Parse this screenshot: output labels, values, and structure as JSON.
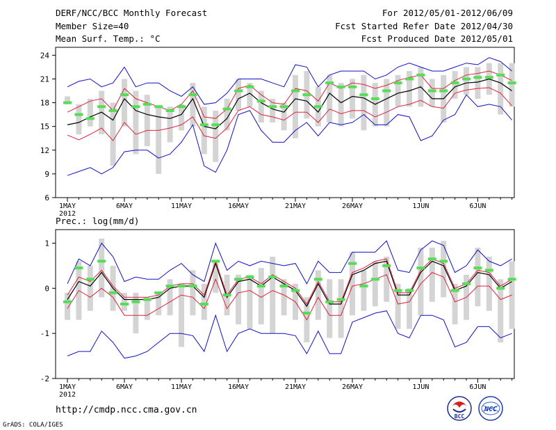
{
  "header": {
    "title": "DERF/NCC/BCC Monthly Forecast",
    "member_size": "Member Size=40",
    "variable_top": "Mean Surf. Temp.: °C",
    "period": "For 2012/05/01-2012/06/09",
    "started": "Fcst Started Refer Date 2012/04/30",
    "produced": "Fcst Produced Date 2012/05/01"
  },
  "footer": {
    "url": "http://cmdp.ncc.cma.gov.cn",
    "grads": "GrADS: COLA/IGES",
    "logo_bcc": "BCC",
    "logo_ncc": "NCC"
  },
  "colors": {
    "mean": "#000000",
    "spread": "#e0203a",
    "extreme": "#1010c8",
    "box": "#d4d4d4",
    "marker": "#55dd55"
  },
  "chart_data": [
    {
      "type": "line",
      "title": "Mean Surf. Temp.: °C",
      "x_tick_labels": [
        "1MAY",
        "6MAY",
        "11MAY",
        "16MAY",
        "21MAY",
        "26MAY",
        "1JUN",
        "6JUN"
      ],
      "x_tick_days": [
        1,
        6,
        11,
        16,
        21,
        26,
        32,
        37
      ],
      "year_label": "2012",
      "days": [
        1,
        2,
        3,
        4,
        5,
        6,
        7,
        8,
        9,
        10,
        11,
        12,
        13,
        14,
        15,
        16,
        17,
        18,
        19,
        20,
        21,
        22,
        23,
        24,
        25,
        26,
        27,
        28,
        29,
        30,
        31,
        32,
        33,
        34,
        35,
        36,
        37,
        38,
        39,
        40
      ],
      "ylim": [
        6,
        25
      ],
      "yticks": [
        6,
        9,
        12,
        15,
        18,
        21,
        24
      ],
      "series": [
        {
          "name": "ensemble-mean",
          "values": [
            15.2,
            15.5,
            16.2,
            16.8,
            15.8,
            18.5,
            17.0,
            16.5,
            16.2,
            16.0,
            16.5,
            18.5,
            15.0,
            14.7,
            16.0,
            18.5,
            19.2,
            18.0,
            17.2,
            16.8,
            18.5,
            18.2,
            16.8,
            19.2,
            18.0,
            18.8,
            18.6,
            17.8,
            18.5,
            19.2,
            19.5,
            20.0,
            18.5,
            18.5,
            20.0,
            20.5,
            20.6,
            21.0,
            20.5,
            19.5
          ]
        },
        {
          "name": "spread-upper",
          "values": [
            16.8,
            17.5,
            18.2,
            18.5,
            17.0,
            19.8,
            18.5,
            18.0,
            17.5,
            17.0,
            17.8,
            19.5,
            16.2,
            16.0,
            17.2,
            19.8,
            20.2,
            19.0,
            18.0,
            17.8,
            19.8,
            19.5,
            18.2,
            20.5,
            19.8,
            20.5,
            20.3,
            19.8,
            20.2,
            20.8,
            21.2,
            21.5,
            19.8,
            19.8,
            20.8,
            21.5,
            21.7,
            22.0,
            21.5,
            20.8
          ]
        },
        {
          "name": "spread-lower",
          "values": [
            13.9,
            13.3,
            14.0,
            14.8,
            13.2,
            15.5,
            14.0,
            14.5,
            14.5,
            14.8,
            15.2,
            16.2,
            13.8,
            13.5,
            14.8,
            17.0,
            17.5,
            16.5,
            16.2,
            15.8,
            16.8,
            16.8,
            15.5,
            17.2,
            16.6,
            17.0,
            17.0,
            16.2,
            16.8,
            17.5,
            17.8,
            18.3,
            17.5,
            17.3,
            19.2,
            19.6,
            19.8,
            19.9,
            19.2,
            17.6
          ]
        },
        {
          "name": "max",
          "values": [
            20.0,
            20.7,
            21.0,
            20.0,
            20.5,
            22.5,
            20.0,
            20.5,
            20.5,
            19.5,
            18.8,
            20.0,
            17.8,
            18.0,
            19.2,
            21.0,
            21.0,
            21.0,
            20.5,
            20.0,
            22.8,
            22.5,
            20.0,
            21.5,
            22.0,
            22.0,
            22.0,
            21.0,
            21.5,
            22.5,
            23.0,
            22.5,
            22.0,
            22.0,
            22.5,
            23.0,
            22.8,
            23.7,
            23.2,
            22.0
          ]
        },
        {
          "name": "min",
          "values": [
            8.8,
            9.3,
            9.8,
            9.0,
            9.8,
            11.8,
            12.0,
            12.0,
            11.0,
            11.5,
            13.0,
            15.2,
            10.0,
            9.2,
            12.0,
            16.5,
            17.0,
            14.5,
            13.0,
            13.0,
            14.5,
            15.5,
            13.8,
            15.5,
            15.2,
            15.5,
            16.5,
            15.2,
            15.2,
            16.5,
            16.2,
            13.2,
            13.8,
            15.8,
            16.5,
            19.0,
            17.5,
            17.8,
            17.5,
            15.8
          ]
        },
        {
          "name": "observed",
          "values": [
            18.0,
            16.5,
            16.0,
            17.5,
            17.0,
            19.0,
            17.5,
            17.8,
            17.5,
            17.0,
            17.5,
            19.0,
            15.2,
            15.2,
            17.2,
            19.5,
            20.0,
            18.2,
            17.5,
            17.5,
            19.5,
            19.0,
            17.5,
            20.5,
            20.0,
            20.0,
            19.0,
            18.5,
            19.5,
            20.5,
            21.0,
            21.5,
            19.5,
            19.5,
            20.5,
            21.0,
            21.2,
            21.2,
            21.5,
            20.5
          ]
        }
      ],
      "box_ranges": [
        [
          17.8,
          18.8
        ],
        [
          14.0,
          17.8
        ],
        [
          15.0,
          18.5
        ],
        [
          14.0,
          19.5
        ],
        [
          10.0,
          18.0
        ],
        [
          15.0,
          21.0
        ],
        [
          11.5,
          19.5
        ],
        [
          12.5,
          19.0
        ],
        [
          9.0,
          17.5
        ],
        [
          13.0,
          17.5
        ],
        [
          14.5,
          17.8
        ],
        [
          15.0,
          20.5
        ],
        [
          11.5,
          17.5
        ],
        [
          10.5,
          17.0
        ],
        [
          14.5,
          18.5
        ],
        [
          17.0,
          21.0
        ],
        [
          17.5,
          20.5
        ],
        [
          15.5,
          19.5
        ],
        [
          15.5,
          18.5
        ],
        [
          14.5,
          18.0
        ],
        [
          13.5,
          21.5
        ],
        [
          16.0,
          22.0
        ],
        [
          15.0,
          20.0
        ],
        [
          15.5,
          21.5
        ],
        [
          15.0,
          20.5
        ],
        [
          16.0,
          21.0
        ],
        [
          14.5,
          21.5
        ],
        [
          15.0,
          20.5
        ],
        [
          15.0,
          21.0
        ],
        [
          17.5,
          21.5
        ],
        [
          17.5,
          22.0
        ],
        [
          17.5,
          22.5
        ],
        [
          17.5,
          21.0
        ],
        [
          15.5,
          21.5
        ],
        [
          18.5,
          22.0
        ],
        [
          19.0,
          22.5
        ],
        [
          18.5,
          22.5
        ],
        [
          19.0,
          23.0
        ],
        [
          16.5,
          23.0
        ],
        [
          17.5,
          23.0
        ]
      ]
    },
    {
      "type": "line",
      "title": "Prec.: log(mm/d)",
      "x_tick_labels": [
        "1MAY",
        "6MAY",
        "11MAY",
        "16MAY",
        "21MAY",
        "26MAY",
        "1JUN",
        "6JUN"
      ],
      "x_tick_days": [
        1,
        6,
        11,
        16,
        21,
        26,
        32,
        37
      ],
      "year_label": "2012",
      "days": [
        1,
        2,
        3,
        4,
        5,
        6,
        7,
        8,
        9,
        10,
        11,
        12,
        13,
        14,
        15,
        16,
        17,
        18,
        19,
        20,
        21,
        22,
        23,
        24,
        25,
        26,
        27,
        28,
        29,
        30,
        31,
        32,
        33,
        34,
        35,
        36,
        37,
        38,
        39,
        40
      ],
      "ylim": [
        -2,
        1.3
      ],
      "yticks": [
        -2,
        -1,
        0,
        1
      ],
      "series": [
        {
          "name": "ensemble-mean",
          "values": [
            -0.25,
            0.15,
            0.05,
            0.35,
            0.0,
            -0.25,
            -0.25,
            -0.25,
            -0.2,
            0.0,
            0.05,
            0.05,
            -0.2,
            0.55,
            -0.2,
            0.15,
            0.2,
            0.05,
            0.25,
            0.1,
            -0.05,
            -0.4,
            0.1,
            -0.35,
            -0.35,
            0.3,
            0.4,
            0.55,
            0.6,
            -0.15,
            -0.15,
            0.35,
            0.6,
            0.5,
            -0.05,
            0.05,
            0.35,
            0.3,
            0.0,
            0.15
          ]
        },
        {
          "name": "spread-upper",
          "values": [
            -0.15,
            0.25,
            0.15,
            0.4,
            0.05,
            -0.2,
            -0.2,
            -0.2,
            -0.15,
            0.05,
            0.1,
            0.1,
            -0.15,
            0.6,
            -0.15,
            0.2,
            0.25,
            0.1,
            0.3,
            0.15,
            0.0,
            -0.35,
            0.15,
            -0.3,
            -0.3,
            0.35,
            0.45,
            0.6,
            0.65,
            -0.1,
            -0.1,
            0.4,
            0.65,
            0.55,
            0.0,
            0.1,
            0.4,
            0.35,
            0.05,
            0.2
          ]
        },
        {
          "name": "spread-lower",
          "values": [
            -0.45,
            -0.05,
            -0.2,
            0.0,
            -0.2,
            -0.6,
            -0.6,
            -0.6,
            -0.45,
            -0.3,
            -0.15,
            -0.2,
            -0.45,
            0.2,
            -0.45,
            -0.1,
            -0.05,
            -0.2,
            -0.05,
            -0.15,
            -0.3,
            -0.7,
            -0.2,
            -0.6,
            -0.6,
            0.05,
            0.1,
            0.2,
            0.3,
            -0.35,
            -0.3,
            0.1,
            0.35,
            0.25,
            -0.3,
            -0.2,
            0.05,
            0.05,
            -0.25,
            -0.15
          ]
        },
        {
          "name": "max",
          "values": [
            0.1,
            0.65,
            0.5,
            1.0,
            0.7,
            0.15,
            0.25,
            0.2,
            0.2,
            0.4,
            0.55,
            0.3,
            0.15,
            1.0,
            0.4,
            0.6,
            0.5,
            0.6,
            0.55,
            0.5,
            0.55,
            0.1,
            0.6,
            0.35,
            0.35,
            0.8,
            0.8,
            0.8,
            1.05,
            0.4,
            0.35,
            0.85,
            1.05,
            0.95,
            0.35,
            0.5,
            0.85,
            0.6,
            0.5,
            0.65
          ]
        },
        {
          "name": "min",
          "values": [
            -1.5,
            -1.4,
            -1.4,
            -0.95,
            -1.2,
            -1.55,
            -1.5,
            -1.4,
            -1.2,
            -1.0,
            -1.0,
            -1.05,
            -1.4,
            -0.6,
            -1.4,
            -1.0,
            -0.9,
            -1.0,
            -1.0,
            -1.0,
            -1.05,
            -1.45,
            -0.95,
            -1.45,
            -1.45,
            -0.75,
            -0.65,
            -0.55,
            -0.5,
            -1.0,
            -1.1,
            -0.6,
            -0.6,
            -0.7,
            -1.3,
            -1.2,
            -0.85,
            -0.85,
            -1.1,
            -1.0
          ]
        },
        {
          "name": "observed",
          "values": [
            -0.3,
            0.45,
            0.2,
            0.6,
            -0.1,
            -0.35,
            -0.3,
            -0.25,
            -0.1,
            0.05,
            0.05,
            0.05,
            -0.35,
            0.6,
            -0.15,
            0.2,
            0.25,
            0.05,
            0.25,
            0.05,
            -0.05,
            -0.55,
            0.2,
            -0.3,
            -0.25,
            0.55,
            0.05,
            0.2,
            0.5,
            -0.05,
            -0.05,
            0.45,
            0.65,
            0.6,
            -0.05,
            0.1,
            0.45,
            0.4,
            0.0,
            0.2
          ]
        }
      ],
      "box_ranges": [
        [
          -0.7,
          -0.1
        ],
        [
          -0.7,
          0.6
        ],
        [
          -0.5,
          0.5
        ],
        [
          -0.2,
          1.1
        ],
        [
          -0.5,
          0.5
        ],
        [
          -0.5,
          -0.1
        ],
        [
          -1.0,
          -0.1
        ],
        [
          -0.7,
          -0.2
        ],
        [
          -0.6,
          -0.1
        ],
        [
          -0.6,
          0.2
        ],
        [
          -1.3,
          0.1
        ],
        [
          -0.6,
          0.4
        ],
        [
          -0.7,
          0.1
        ],
        [
          -0.1,
          0.6
        ],
        [
          -0.6,
          0.3
        ],
        [
          -0.8,
          0.3
        ],
        [
          -0.9,
          0.3
        ],
        [
          -0.8,
          0.45
        ],
        [
          -1.0,
          0.7
        ],
        [
          -0.6,
          0.2
        ],
        [
          -0.7,
          0.1
        ],
        [
          -1.2,
          -0.2
        ],
        [
          -0.7,
          0.4
        ],
        [
          -1.1,
          0.2
        ],
        [
          -1.1,
          0.2
        ],
        [
          -0.6,
          0.8
        ],
        [
          -0.5,
          0.4
        ],
        [
          -0.4,
          0.6
        ],
        [
          -0.3,
          0.7
        ],
        [
          -0.9,
          0.1
        ],
        [
          -0.9,
          0.0
        ],
        [
          -0.6,
          0.9
        ],
        [
          -0.3,
          0.9
        ],
        [
          -0.2,
          1.05
        ],
        [
          -0.8,
          0.1
        ],
        [
          -0.7,
          0.3
        ],
        [
          -0.4,
          0.9
        ],
        [
          -0.5,
          0.7
        ],
        [
          -1.2,
          0.2
        ],
        [
          -0.9,
          0.6
        ]
      ]
    }
  ]
}
